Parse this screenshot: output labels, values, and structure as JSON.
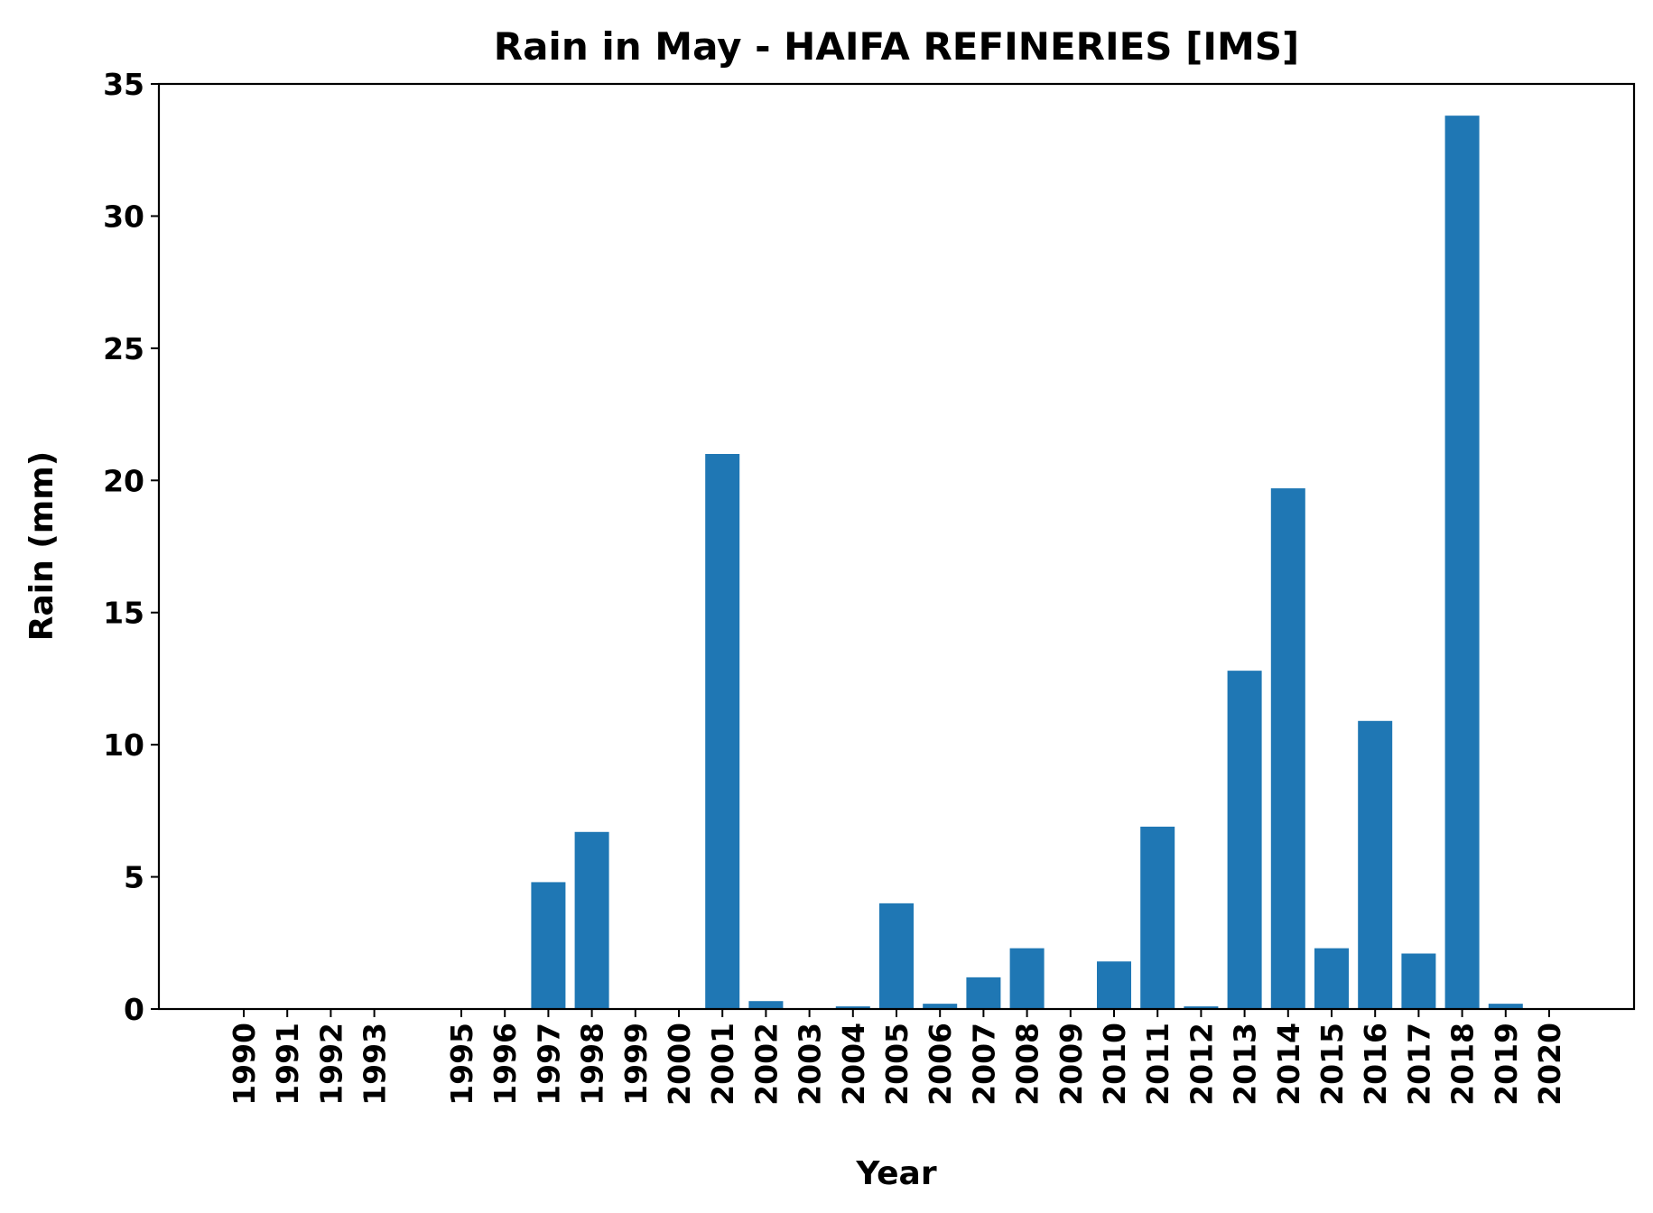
{
  "chart_data": {
    "type": "bar",
    "title": "Rain in May - HAIFA REFINERIES [IMS]",
    "xlabel": "Year",
    "ylabel": "Rain (mm)",
    "ylim": [
      0,
      35
    ],
    "yticks": [
      0,
      5,
      10,
      15,
      20,
      25,
      30,
      35
    ],
    "grid": false,
    "bar_color": "#1f77b4",
    "categories": [
      1990,
      1991,
      1992,
      1993,
      1995,
      1996,
      1997,
      1998,
      1999,
      2000,
      2001,
      2002,
      2003,
      2004,
      2005,
      2006,
      2007,
      2008,
      2009,
      2010,
      2011,
      2012,
      2013,
      2014,
      2015,
      2016,
      2017,
      2018,
      2019,
      2020
    ],
    "values": [
      0,
      0,
      0,
      0,
      0,
      0,
      4.8,
      6.7,
      0,
      0,
      21.0,
      0.3,
      0,
      0.1,
      4.0,
      0.2,
      1.2,
      2.3,
      0,
      1.8,
      6.9,
      0.1,
      12.8,
      19.7,
      2.3,
      10.9,
      2.1,
      33.8,
      0.2,
      0
    ]
  }
}
